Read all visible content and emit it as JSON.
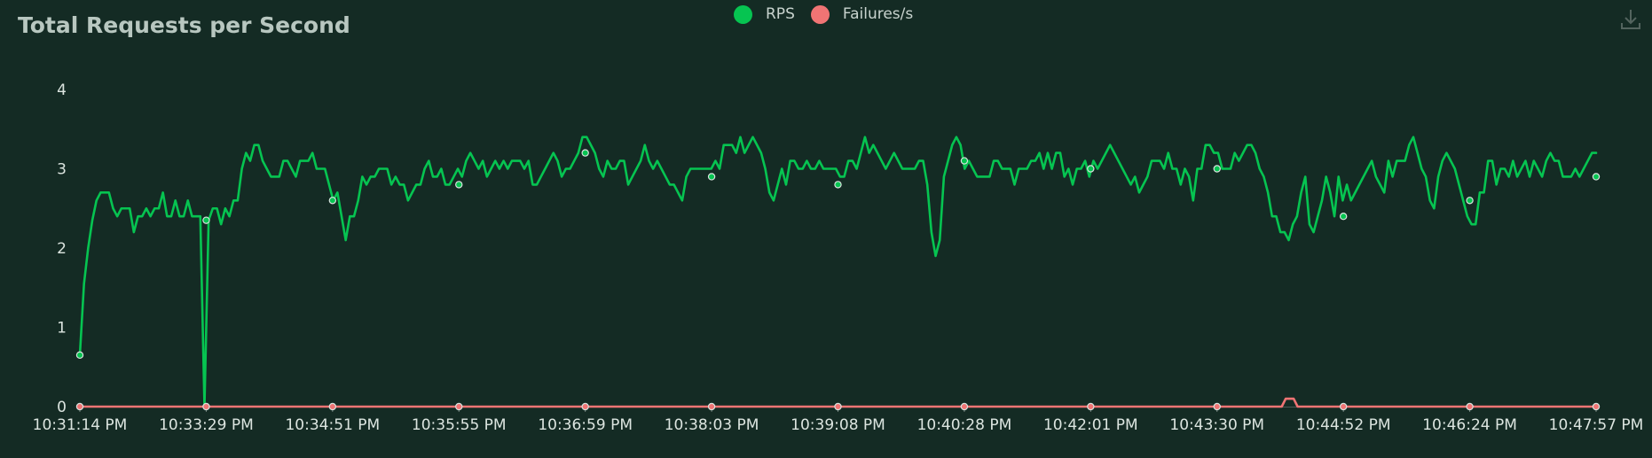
{
  "chart_data": {
    "type": "line",
    "title": "Total Requests per Second",
    "xlabel": "",
    "ylabel": "",
    "ylim": [
      0,
      4
    ],
    "yticks": [
      0,
      1,
      2,
      3,
      4
    ],
    "xtick_labels": [
      "10:31:14 PM",
      "10:33:29 PM",
      "10:34:51 PM",
      "10:35:55 PM",
      "10:36:59 PM",
      "10:38:03 PM",
      "10:39:08 PM",
      "10:40:28 PM",
      "10:42:01 PM",
      "10:43:30 PM",
      "10:44:52 PM",
      "10:46:24 PM",
      "10:47:57 PM"
    ],
    "grid": false,
    "legend_position": "top-center",
    "series": [
      {
        "name": "RPS",
        "color": "#06c451",
        "values": [
          0.65,
          1.55,
          2.0,
          2.35,
          2.6,
          2.7,
          2.7,
          2.7,
          2.5,
          2.4,
          2.5,
          2.5,
          2.5,
          2.2,
          2.4,
          2.4,
          2.5,
          2.4,
          2.5,
          2.5,
          2.7,
          2.4,
          2.4,
          2.6,
          2.4,
          2.4,
          2.6,
          2.4,
          2.4,
          2.4,
          0.0,
          2.35,
          2.5,
          2.5,
          2.3,
          2.5,
          2.4,
          2.6,
          2.6,
          3.0,
          3.2,
          3.1,
          3.3,
          3.3,
          3.1,
          3.0,
          2.9,
          2.9,
          2.9,
          3.1,
          3.1,
          3.0,
          2.9,
          3.1,
          3.1,
          3.1,
          3.2,
          3.0,
          3.0,
          3.0,
          2.8,
          2.6,
          2.7,
          2.4,
          2.1,
          2.4,
          2.4,
          2.6,
          2.9,
          2.8,
          2.9,
          2.9,
          3.0,
          3.0,
          3.0,
          2.8,
          2.9,
          2.8,
          2.8,
          2.6,
          2.7,
          2.8,
          2.8,
          3.0,
          3.1,
          2.9,
          2.9,
          3.0,
          2.8,
          2.8,
          2.9,
          3.0,
          2.9,
          3.1,
          3.2,
          3.1,
          3.0,
          3.1,
          2.9,
          3.0,
          3.1,
          3.0,
          3.1,
          3.0,
          3.1,
          3.1,
          3.1,
          3.0,
          3.1,
          2.8,
          2.8,
          2.9,
          3.0,
          3.1,
          3.2,
          3.1,
          2.9,
          3.0,
          3.0,
          3.1,
          3.2,
          3.4,
          3.4,
          3.3,
          3.2,
          3.0,
          2.9,
          3.1,
          3.0,
          3.0,
          3.1,
          3.1,
          2.8,
          2.9,
          3.0,
          3.1,
          3.3,
          3.1,
          3.0,
          3.1,
          3.0,
          2.9,
          2.8,
          2.8,
          2.7,
          2.6,
          2.9,
          3.0,
          3.0,
          3.0,
          3.0,
          3.0,
          3.0,
          3.1,
          3.0,
          3.3,
          3.3,
          3.3,
          3.2,
          3.4,
          3.2,
          3.3,
          3.4,
          3.3,
          3.2,
          3.0,
          2.7,
          2.6,
          2.8,
          3.0,
          2.8,
          3.1,
          3.1,
          3.0,
          3.0,
          3.1,
          3.0,
          3.0,
          3.1,
          3.0,
          3.0,
          3.0,
          3.0,
          2.9,
          2.9,
          3.1,
          3.1,
          3.0,
          3.2,
          3.4,
          3.2,
          3.3,
          3.2,
          3.1,
          3.0,
          3.1,
          3.2,
          3.1,
          3.0,
          3.0,
          3.0,
          3.0,
          3.1,
          3.1,
          2.8,
          2.2,
          1.9,
          2.1,
          2.9,
          3.1,
          3.3,
          3.4,
          3.3,
          3.0,
          3.1,
          3.0,
          2.9,
          2.9,
          2.9,
          2.9,
          3.1,
          3.1,
          3.0,
          3.0,
          3.0,
          2.8,
          3.0,
          3.0,
          3.0,
          3.1,
          3.1,
          3.2,
          3.0,
          3.2,
          3.0,
          3.2,
          3.2,
          2.9,
          3.0,
          2.8,
          3.0,
          3.0,
          3.1,
          2.9,
          3.1,
          3.0,
          3.1,
          3.2,
          3.3,
          3.2,
          3.1,
          3.0,
          2.9,
          2.8,
          2.9,
          2.7,
          2.8,
          2.9,
          3.1,
          3.1,
          3.1,
          3.0,
          3.2,
          3.0,
          3.0,
          2.8,
          3.0,
          2.9,
          2.6,
          3.0,
          3.0,
          3.3,
          3.3,
          3.2,
          3.2,
          3.0,
          3.0,
          3.0,
          3.2,
          3.1,
          3.2,
          3.3,
          3.3,
          3.2,
          3.0,
          2.9,
          2.7,
          2.4,
          2.4,
          2.2,
          2.2,
          2.1,
          2.3,
          2.4,
          2.7,
          2.9,
          2.3,
          2.2,
          2.4,
          2.6,
          2.9,
          2.7,
          2.4,
          2.9,
          2.6,
          2.8,
          2.6,
          2.7,
          2.8,
          2.9,
          3.0,
          3.1,
          2.9,
          2.8,
          2.7,
          3.1,
          2.9,
          3.1,
          3.1,
          3.1,
          3.3,
          3.4,
          3.2,
          3.0,
          2.9,
          2.6,
          2.5,
          2.9,
          3.1,
          3.2,
          3.1,
          3.0,
          2.8,
          2.6,
          2.4,
          2.3,
          2.3,
          2.7,
          2.7,
          3.1,
          3.1,
          2.8,
          3.0,
          3.0,
          2.9,
          3.1,
          2.9,
          3.0,
          3.1,
          2.9,
          3.1,
          3.0,
          2.9,
          3.1,
          3.2,
          3.1,
          3.1,
          2.9,
          2.9,
          2.9,
          3.0,
          2.9,
          3.0,
          3.1,
          3.2,
          3.2
        ],
        "markers": [
          0.65,
          2.35,
          2.6,
          2.8,
          3.2,
          2.9,
          2.8,
          3.1,
          3.0,
          3.0,
          2.4,
          2.6,
          2.9
        ]
      },
      {
        "name": "Failures/s",
        "color": "#f07474",
        "values": [
          0,
          0,
          0,
          0,
          0,
          0,
          0,
          0,
          0,
          0,
          0,
          0,
          0,
          0,
          0,
          0,
          0,
          0,
          0,
          0,
          0,
          0,
          0,
          0,
          0,
          0,
          0,
          0,
          0,
          0,
          0,
          0,
          0,
          0,
          0,
          0,
          0,
          0,
          0,
          0,
          0,
          0,
          0,
          0,
          0,
          0,
          0,
          0,
          0,
          0,
          0,
          0,
          0,
          0,
          0,
          0,
          0,
          0,
          0,
          0,
          0,
          0,
          0,
          0,
          0,
          0,
          0,
          0,
          0,
          0,
          0,
          0,
          0,
          0,
          0,
          0,
          0,
          0,
          0,
          0,
          0,
          0,
          0,
          0,
          0,
          0,
          0,
          0,
          0,
          0,
          0,
          0,
          0,
          0,
          0,
          0,
          0,
          0,
          0,
          0,
          0,
          0,
          0,
          0,
          0,
          0,
          0,
          0,
          0,
          0,
          0,
          0,
          0,
          0,
          0,
          0,
          0,
          0,
          0,
          0,
          0,
          0,
          0,
          0,
          0,
          0,
          0,
          0,
          0,
          0,
          0,
          0,
          0,
          0,
          0,
          0,
          0,
          0,
          0,
          0,
          0,
          0,
          0,
          0,
          0,
          0,
          0,
          0,
          0,
          0,
          0,
          0,
          0,
          0,
          0,
          0,
          0,
          0,
          0,
          0,
          0,
          0,
          0,
          0,
          0,
          0,
          0,
          0,
          0,
          0,
          0,
          0,
          0,
          0,
          0,
          0,
          0,
          0,
          0,
          0,
          0,
          0,
          0,
          0,
          0,
          0,
          0,
          0,
          0,
          0,
          0,
          0,
          0,
          0,
          0,
          0,
          0,
          0,
          0,
          0,
          0,
          0,
          0,
          0,
          0,
          0,
          0,
          0,
          0,
          0,
          0,
          0,
          0,
          0,
          0,
          0,
          0,
          0,
          0,
          0,
          0,
          0,
          0,
          0,
          0,
          0,
          0,
          0,
          0,
          0,
          0,
          0,
          0,
          0,
          0,
          0,
          0,
          0,
          0,
          0,
          0,
          0,
          0,
          0,
          0,
          0,
          0,
          0,
          0,
          0,
          0,
          0,
          0,
          0,
          0,
          0,
          0,
          0,
          0,
          0,
          0,
          0,
          0,
          0,
          0,
          0,
          0,
          0,
          0,
          0,
          0,
          0,
          0,
          0,
          0,
          0,
          0,
          0,
          0,
          0,
          0,
          0,
          0,
          0,
          0,
          0,
          0,
          0,
          0,
          0,
          0,
          0,
          0,
          0,
          0,
          0,
          0,
          0,
          0,
          0,
          0,
          0,
          0,
          0.1,
          0.1,
          0.1,
          0,
          0,
          0,
          0,
          0,
          0,
          0,
          0,
          0,
          0,
          0,
          0,
          0,
          0,
          0,
          0,
          0,
          0,
          0,
          0,
          0,
          0,
          0,
          0,
          0,
          0,
          0,
          0,
          0,
          0,
          0,
          0,
          0,
          0,
          0,
          0,
          0,
          0,
          0,
          0,
          0,
          0,
          0,
          0,
          0,
          0,
          0,
          0,
          0,
          0,
          0,
          0,
          0,
          0,
          0,
          0,
          0,
          0,
          0,
          0,
          0,
          0,
          0,
          0,
          0,
          0,
          0,
          0,
          0,
          0,
          0,
          0,
          0,
          0,
          0,
          0
        ],
        "markers": [
          0,
          0,
          0,
          0,
          0,
          0,
          0,
          0,
          0,
          0,
          0,
          0,
          0
        ]
      }
    ]
  },
  "legend": {
    "items": [
      {
        "label": "RPS",
        "color": "#06c451"
      },
      {
        "label": "Failures/s",
        "color": "#f07474"
      }
    ]
  },
  "toolbar": {
    "icon": "download-icon"
  }
}
